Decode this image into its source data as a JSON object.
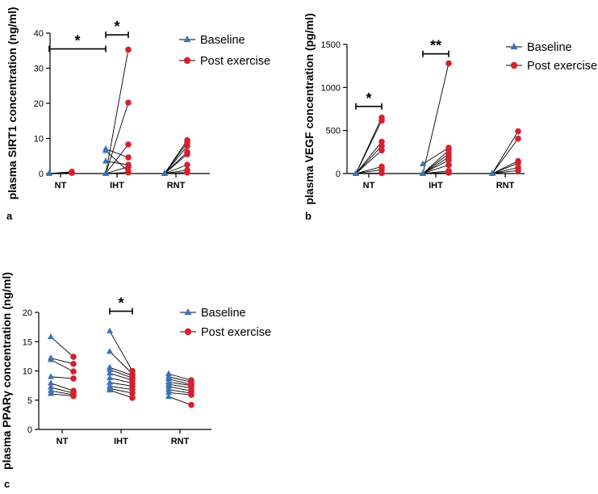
{
  "colors": {
    "baseline": "#3a72b5",
    "post": "#d7202e",
    "axis": "#000000",
    "line": "#000000"
  },
  "chart_data": [
    {
      "panel_label": "a",
      "type": "scatter",
      "ylabel": "plasma SIRT1 concentration (ng/ml)",
      "ylim": [
        0,
        40
      ],
      "yticks": [
        0,
        10,
        20,
        30,
        40
      ],
      "categories": [
        "NT",
        "IHT",
        "RNT"
      ],
      "legend": [
        "Baseline",
        "Post exercise"
      ],
      "legend_position": "right",
      "groups": [
        {
          "category": "NT",
          "pairs": [
            [
              0,
              0.3
            ],
            [
              0,
              0.5
            ],
            [
              0,
              0.2
            ]
          ]
        },
        {
          "category": "IHT",
          "pairs": [
            [
              0,
              35.3
            ],
            [
              0,
              20.2
            ],
            [
              7.0,
              4.6
            ],
            [
              3.5,
              2.5
            ],
            [
              0,
              8.3
            ],
            [
              0,
              1.9
            ],
            [
              0,
              0.3
            ],
            [
              6.5,
              0.6
            ]
          ]
        },
        {
          "category": "RNT",
          "pairs": [
            [
              0,
              9.5
            ],
            [
              0,
              8.8
            ],
            [
              0,
              7.8
            ],
            [
              0,
              6.1
            ],
            [
              0,
              5.5
            ],
            [
              0,
              2.5
            ],
            [
              0,
              1.0
            ],
            [
              0,
              0.3
            ]
          ]
        }
      ],
      "brackets": [
        {
          "label": "*",
          "from": "NT",
          "to": "IHT",
          "y": 35.5
        },
        {
          "label": "*",
          "from": "IHT",
          "to": "IHT_post",
          "y": 39.5
        }
      ]
    },
    {
      "panel_label": "b",
      "type": "scatter",
      "ylabel": "plasma VEGF concentration (pg/ml)",
      "ylim": [
        0,
        1500
      ],
      "yticks": [
        0,
        500,
        1000,
        1500
      ],
      "categories": [
        "NT",
        "IHT",
        "RNT"
      ],
      "legend": [
        "Baseline",
        "Post exercise"
      ],
      "legend_position": "right",
      "groups": [
        {
          "category": "NT",
          "pairs": [
            [
              0,
              650
            ],
            [
              0,
              615
            ],
            [
              0,
              370
            ],
            [
              0,
              320
            ],
            [
              0,
              270
            ],
            [
              0,
              80
            ],
            [
              0,
              45
            ],
            [
              0,
              5
            ]
          ]
        },
        {
          "category": "IHT",
          "pairs": [
            [
              0,
              1280
            ],
            [
              110,
              300
            ],
            [
              0,
              270
            ],
            [
              0,
              230
            ],
            [
              0,
              190
            ],
            [
              0,
              155
            ],
            [
              0,
              100
            ],
            [
              0,
              30
            ],
            [
              0,
              10
            ]
          ]
        },
        {
          "category": "RNT",
          "pairs": [
            [
              0,
              490
            ],
            [
              0,
              405
            ],
            [
              0,
              145
            ],
            [
              0,
              120
            ],
            [
              0,
              70
            ],
            [
              0,
              35
            ]
          ]
        }
      ],
      "brackets": [
        {
          "label": "*",
          "from": "NT",
          "to": "NT_post",
          "y": 780
        },
        {
          "label": "**",
          "from": "IHT",
          "to": "IHT_post",
          "y": 1390
        }
      ]
    },
    {
      "panel_label": "c",
      "type": "scatter",
      "ylabel": "plasma PPARγ concentration (ng/ml)",
      "ylim": [
        0,
        20
      ],
      "yticks": [
        0,
        5,
        10,
        15,
        20
      ],
      "categories": [
        "NT",
        "IHT",
        "RNT"
      ],
      "legend": [
        "Baseline",
        "Post exercise"
      ],
      "legend_position": "right",
      "groups": [
        {
          "category": "NT",
          "pairs": [
            [
              15.8,
              12.4
            ],
            [
              12.2,
              11.2
            ],
            [
              11.9,
              9.9
            ],
            [
              9.0,
              8.7
            ],
            [
              7.9,
              6.6
            ],
            [
              7.2,
              6.2
            ],
            [
              6.6,
              5.9
            ],
            [
              6.1,
              5.7
            ]
          ]
        },
        {
          "category": "IHT",
          "pairs": [
            [
              16.8,
              10.0
            ],
            [
              13.3,
              9.5
            ],
            [
              10.6,
              9.2
            ],
            [
              10.2,
              8.8
            ],
            [
              9.6,
              8.4
            ],
            [
              8.8,
              7.9
            ],
            [
              8.0,
              7.4
            ],
            [
              7.4,
              6.8
            ],
            [
              7.0,
              6.2
            ],
            [
              6.7,
              5.4
            ]
          ]
        },
        {
          "category": "RNT",
          "pairs": [
            [
              9.5,
              8.4
            ],
            [
              9.0,
              8.1
            ],
            [
              8.6,
              7.7
            ],
            [
              8.1,
              7.5
            ],
            [
              7.7,
              7.1
            ],
            [
              7.3,
              6.6
            ],
            [
              6.8,
              6.2
            ],
            [
              6.3,
              5.9
            ],
            [
              5.6,
              4.2
            ]
          ]
        }
      ],
      "brackets": [
        {
          "label": "*",
          "from": "IHT",
          "to": "IHT_post",
          "y": 20.2
        }
      ]
    }
  ]
}
